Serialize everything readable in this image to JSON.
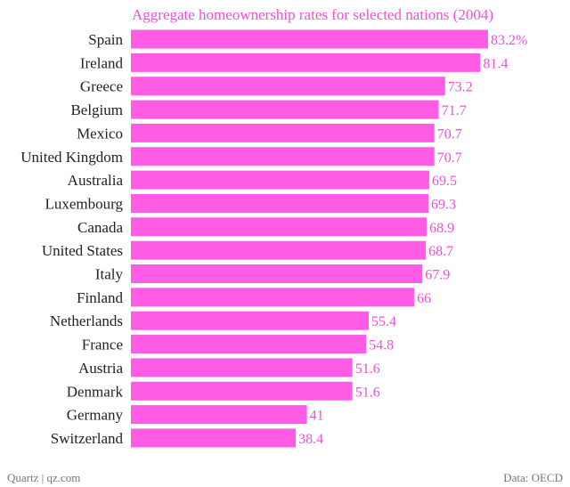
{
  "chart_data": {
    "type": "bar",
    "orientation": "horizontal",
    "title": "Aggregate homeownership rates for selected nations (2004)",
    "categories": [
      "Spain",
      "Ireland",
      "Greece",
      "Belgium",
      "Mexico",
      "United Kingdom",
      "Australia",
      "Luxembourg",
      "Canada",
      "United States",
      "Italy",
      "Finland",
      "Netherlands",
      "France",
      "Austria",
      "Denmark",
      "Germany",
      "Switzerland"
    ],
    "values": [
      83.2,
      81.4,
      73.2,
      71.7,
      70.7,
      70.7,
      69.5,
      69.3,
      68.9,
      68.7,
      67.9,
      66,
      55.4,
      54.8,
      51.6,
      51.6,
      41,
      38.4
    ],
    "value_labels": [
      "83.2%",
      "81.4",
      "73.2",
      "71.7",
      "70.7",
      "70.7",
      "69.5",
      "69.3",
      "68.9",
      "68.7",
      "67.9",
      "66",
      "55.4",
      "54.8",
      "51.6",
      "51.6",
      "41",
      "38.4"
    ],
    "xlim": [
      0,
      83.2
    ],
    "grid": false,
    "legend": "none"
  },
  "colors": {
    "bar": "#ff5ce6",
    "title": "#ee50d8",
    "value_label": "#ee50d8",
    "category_label": "#222222"
  },
  "footer": {
    "source_left": "Quartz | qz.com",
    "source_right": "Data: OECD"
  }
}
